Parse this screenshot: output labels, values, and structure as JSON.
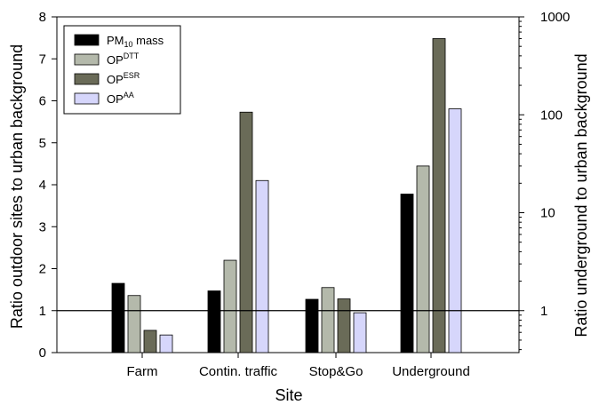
{
  "chart_data": {
    "type": "bar",
    "xlabel": "Site",
    "ylabel": "Ratio outdoor sites to urban background",
    "y2label": "Ratio underground to urban background",
    "ylim": [
      0,
      8
    ],
    "yticks": [
      "0",
      "1",
      "2",
      "3",
      "4",
      "5",
      "6",
      "7",
      "8"
    ],
    "y2scale": "log",
    "y2ticks": [
      {
        "value": 1,
        "label": "1"
      },
      {
        "value": 10,
        "label": "10"
      },
      {
        "value": 100,
        "label": "100"
      },
      {
        "value": 1000,
        "label": "1000"
      }
    ],
    "reference_line": 1,
    "categories": [
      "Farm",
      "Contin. traffic",
      "Stop&Go",
      "Underground"
    ],
    "underground_category_axis": "right (log)",
    "legend_position": "top-left",
    "series": [
      {
        "name": "PM10 mass",
        "legend": {
          "base": "PM",
          "sub": "10",
          "tail": " mass"
        },
        "color": "#000000",
        "values": [
          1.65,
          1.47,
          1.27,
          15.5
        ]
      },
      {
        "name": "OPDTT",
        "legend": {
          "base": "OP",
          "sup": "DTT"
        },
        "color": "#b4b9ab",
        "values": [
          1.36,
          2.2,
          1.55,
          30
        ]
      },
      {
        "name": "OPESR",
        "legend": {
          "base": "OP",
          "sup": "ESR"
        },
        "color": "#6a6b58",
        "values": [
          0.53,
          5.73,
          1.28,
          600
        ]
      },
      {
        "name": "OPAA",
        "legend": {
          "base": "OP",
          "sup": "AA"
        },
        "color": "#d6d6fb",
        "values": [
          0.42,
          4.1,
          0.95,
          115
        ]
      }
    ]
  }
}
